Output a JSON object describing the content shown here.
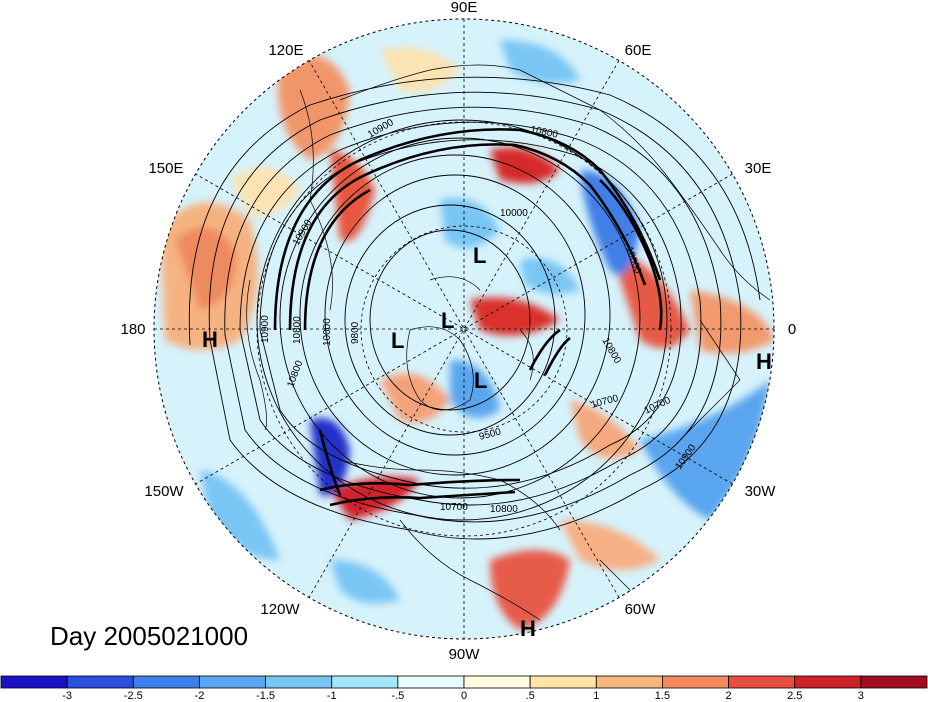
{
  "title": "Day 2005021000",
  "longitude_labels": [
    "90E",
    "60E",
    "30E",
    "0",
    "30W",
    "60W",
    "90W",
    "120W",
    "150W",
    "180",
    "150E",
    "120E"
  ],
  "pressure_centers": [
    {
      "label": "H"
    },
    {
      "label": "H"
    },
    {
      "label": "H"
    },
    {
      "label": "L"
    },
    {
      "label": "L"
    },
    {
      "label": "L"
    },
    {
      "label": "L"
    }
  ],
  "contour_labels": [
    "10900",
    "10800",
    "10000",
    "10700",
    "10700",
    "10900",
    "10800",
    "10700",
    "9500",
    "10900",
    "10900",
    "10800",
    "10800",
    "10000",
    "9800",
    "10800",
    "10000"
  ],
  "colorbar": {
    "colors": [
      "#1c10c8",
      "#2b4fe0",
      "#3f7fe8",
      "#5aa5ef",
      "#79c6f5",
      "#a6e6fa",
      "#e8fbff",
      "#fffbe0",
      "#fde4a8",
      "#f9b780",
      "#f28a5d",
      "#e84f42",
      "#cf2228",
      "#a00c20"
    ],
    "tick_labels": [
      "-3",
      "-2.5",
      "-2",
      "-1.5",
      "-1",
      "-.5",
      "0",
      ".5",
      "1",
      "1.5",
      "2",
      "2.5",
      "3"
    ]
  },
  "colors": {
    "polar_background": "#d6f2fb",
    "contour_line": "#000000",
    "coast_line": "#000000"
  }
}
